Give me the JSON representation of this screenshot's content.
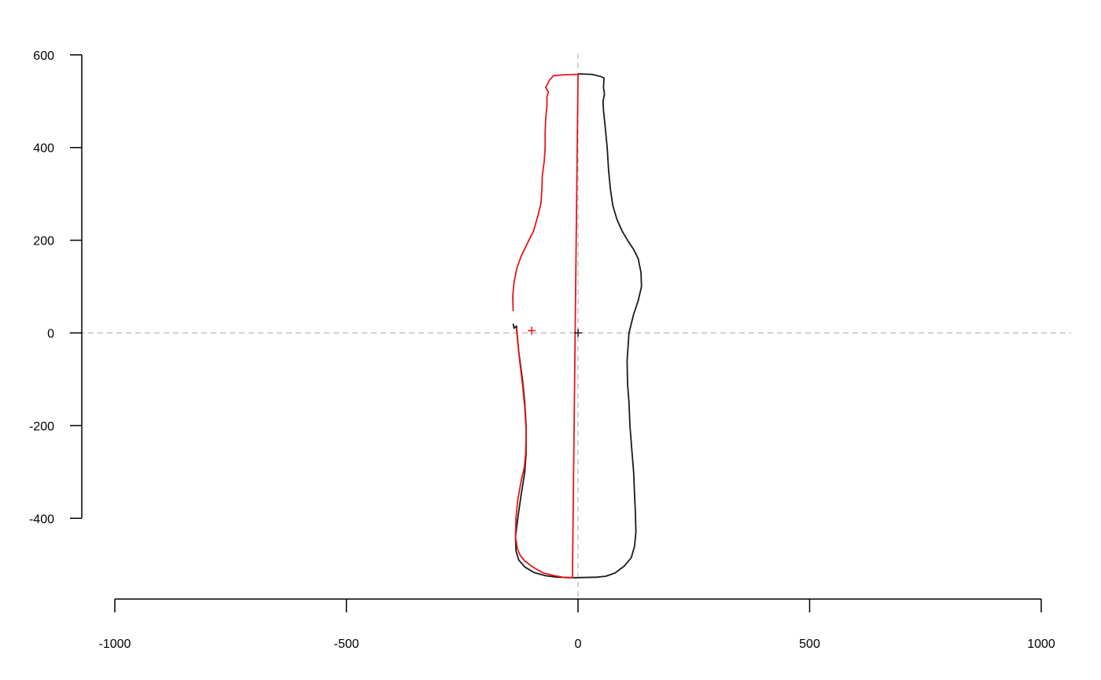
{
  "chart_data": {
    "type": "line",
    "title": "",
    "xlabel": "",
    "ylabel": "",
    "xlim": [
      -1000,
      1000
    ],
    "ylim": [
      -530,
      600
    ],
    "x_ticks": [
      -1000,
      -500,
      0,
      500,
      1000
    ],
    "x_tick_labels": [
      "-1000",
      "-500",
      "0",
      "500",
      "1000"
    ],
    "y_ticks": [
      -400,
      -200,
      0,
      200,
      400,
      600
    ],
    "y_tick_labels": [
      "-400",
      "-200",
      "0",
      "200",
      "400",
      "600"
    ],
    "grid": false,
    "reference_lines": {
      "x": 0,
      "y": 0,
      "style": "dashed",
      "color": "#c0c0c0"
    },
    "colors": {
      "black_series": "#1a1a1a",
      "red_series": "#e8151b",
      "axis": "#000000"
    },
    "series": [
      {
        "color": "#1a1a1a",
        "points": [
          [
            -140,
            20
          ],
          [
            -138,
            10
          ],
          [
            -133,
            15
          ],
          [
            -128,
            -40
          ],
          [
            -120,
            -100
          ],
          [
            -115,
            -150
          ],
          [
            -112,
            -200
          ],
          [
            -112,
            -260
          ],
          [
            -115,
            -300
          ],
          [
            -123,
            -350
          ],
          [
            -130,
            -400
          ],
          [
            -135,
            -440
          ],
          [
            -134,
            -470
          ],
          [
            -128,
            -490
          ],
          [
            -115,
            -505
          ],
          [
            -95,
            -517
          ],
          [
            -70,
            -524
          ],
          [
            -45,
            -527
          ],
          [
            -12,
            -528
          ],
          [
            0,
            -528
          ],
          [
            40,
            -527
          ],
          [
            60,
            -525
          ],
          [
            80,
            -518
          ],
          [
            100,
            -503
          ],
          [
            115,
            -485
          ],
          [
            122,
            -460
          ],
          [
            125,
            -430
          ],
          [
            124,
            -390
          ],
          [
            122,
            -350
          ],
          [
            120,
            -300
          ],
          [
            116,
            -250
          ],
          [
            112,
            -200
          ],
          [
            110,
            -150
          ],
          [
            107,
            -110
          ],
          [
            106,
            -60
          ],
          [
            110,
            0
          ],
          [
            120,
            40
          ],
          [
            130,
            70
          ],
          [
            137,
            100
          ],
          [
            136,
            130
          ],
          [
            130,
            160
          ],
          [
            120,
            180
          ],
          [
            107,
            200
          ],
          [
            95,
            220
          ],
          [
            84,
            245
          ],
          [
            75,
            275
          ],
          [
            70,
            310
          ],
          [
            66,
            350
          ],
          [
            63,
            400
          ],
          [
            59,
            440
          ],
          [
            55,
            480
          ],
          [
            54,
            500
          ],
          [
            57,
            515
          ],
          [
            55,
            530
          ],
          [
            56,
            550
          ],
          [
            50,
            553
          ],
          [
            30,
            558
          ],
          [
            0,
            559
          ]
        ]
      },
      {
        "color": "#e8151b",
        "points": [
          [
            -140,
            47
          ],
          [
            -141,
            80
          ],
          [
            -138,
            110
          ],
          [
            -132,
            140
          ],
          [
            -123,
            165
          ],
          [
            -110,
            192
          ],
          [
            -96,
            220
          ],
          [
            -86,
            255
          ],
          [
            -80,
            280
          ],
          [
            -78,
            310
          ],
          [
            -77,
            340
          ],
          [
            -73,
            370
          ],
          [
            -71,
            400
          ],
          [
            -71,
            430
          ],
          [
            -70,
            460
          ],
          [
            -67,
            490
          ],
          [
            -67,
            510
          ],
          [
            -64,
            520
          ],
          [
            -70,
            530
          ],
          [
            -65,
            538
          ],
          [
            -62,
            545
          ],
          [
            -53,
            555
          ],
          [
            -30,
            557
          ],
          [
            0,
            558
          ],
          [
            -12,
            -528
          ],
          [
            -28,
            -528
          ],
          [
            -50,
            -524
          ],
          [
            -75,
            -518
          ],
          [
            -98,
            -505
          ],
          [
            -115,
            -492
          ],
          [
            -125,
            -480
          ],
          [
            -131,
            -465
          ],
          [
            -135,
            -440
          ],
          [
            -134,
            -400
          ],
          [
            -130,
            -360
          ],
          [
            -123,
            -320
          ],
          [
            -116,
            -290
          ],
          [
            -113,
            -260
          ],
          [
            -112,
            -210
          ],
          [
            -115,
            -160
          ],
          [
            -120,
            -110
          ],
          [
            -126,
            -60
          ],
          [
            -130,
            -20
          ],
          [
            -133,
            10
          ]
        ]
      }
    ],
    "centroids": [
      {
        "color": "#1a1a1a",
        "x": 0,
        "y": 0
      },
      {
        "color": "#e8151b",
        "x": -100,
        "y": 5
      }
    ]
  }
}
